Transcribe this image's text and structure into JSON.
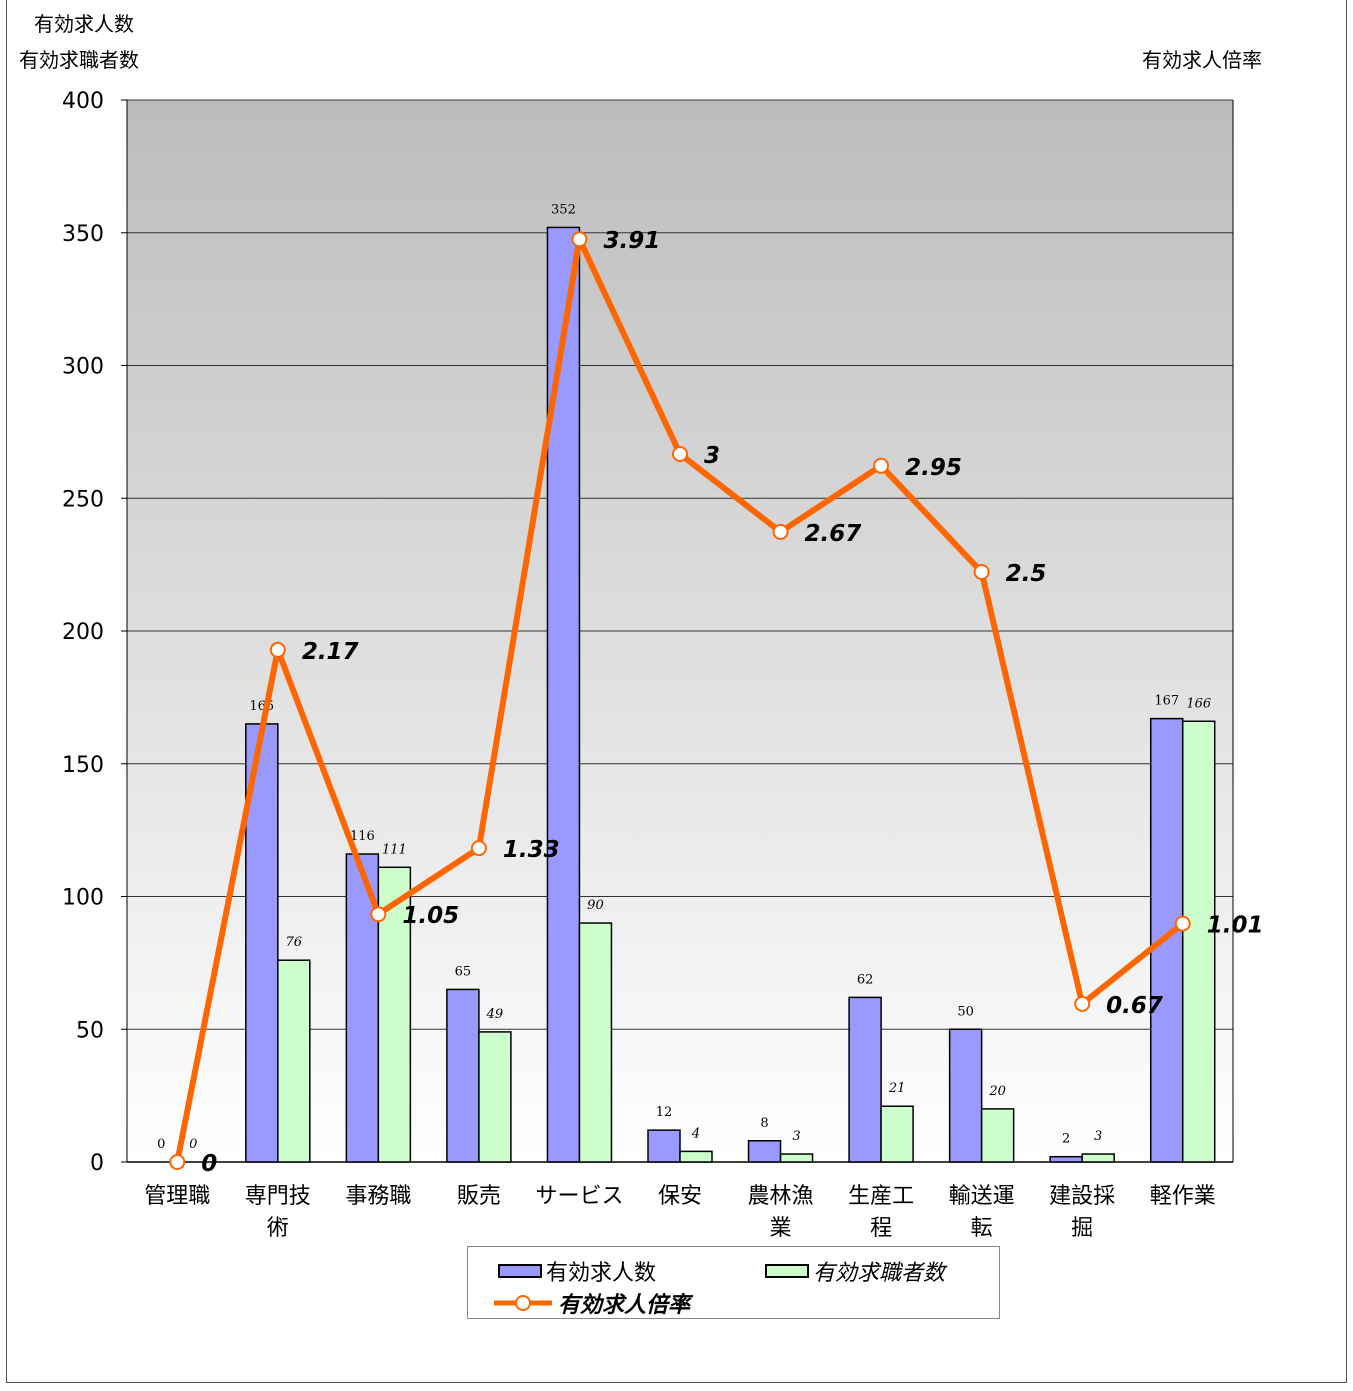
{
  "chart_data": {
    "type": "bar",
    "left_axis_title": [
      "有効求人数",
      "有効求職者数"
    ],
    "right_axis_title": "有効求人倍率",
    "ylim": [
      0,
      400
    ],
    "yticks": [
      0,
      50,
      100,
      150,
      200,
      250,
      300,
      350,
      400
    ],
    "categories": [
      [
        "管理職"
      ],
      [
        "専門技",
        "術"
      ],
      [
        "事務職"
      ],
      [
        "販売"
      ],
      [
        "サービス"
      ],
      [
        "保安"
      ],
      [
        "農林漁",
        "業"
      ],
      [
        "生産工",
        "程"
      ],
      [
        "輸送運",
        "転"
      ],
      [
        "建設採",
        "掘"
      ],
      [
        "軽作業"
      ]
    ],
    "series": [
      {
        "name": "有効求人数",
        "type": "bar",
        "color": "#9999ff",
        "values": [
          0,
          165,
          116,
          65,
          352,
          12,
          8,
          62,
          50,
          2,
          167
        ]
      },
      {
        "name": "有効求職者数",
        "type": "bar",
        "color": "#ccffcc",
        "values": [
          0,
          76,
          111,
          49,
          90,
          4,
          3,
          21,
          20,
          3,
          166
        ]
      },
      {
        "name": "有効求人倍率",
        "type": "line",
        "color": "#ff6600",
        "values": [
          0,
          2.17,
          1.05,
          1.33,
          3.91,
          3,
          2.67,
          2.95,
          2.5,
          0.67,
          1.01
        ],
        "labels": [
          "0",
          "2.17",
          "1.05",
          "1.33",
          "3.91",
          "3",
          "2.67",
          "2.95",
          "2.5",
          "0.67",
          "1.01"
        ]
      }
    ],
    "secondary_ylim": [
      0,
      4.5
    ],
    "grid": true,
    "legend_position": "bottom"
  }
}
